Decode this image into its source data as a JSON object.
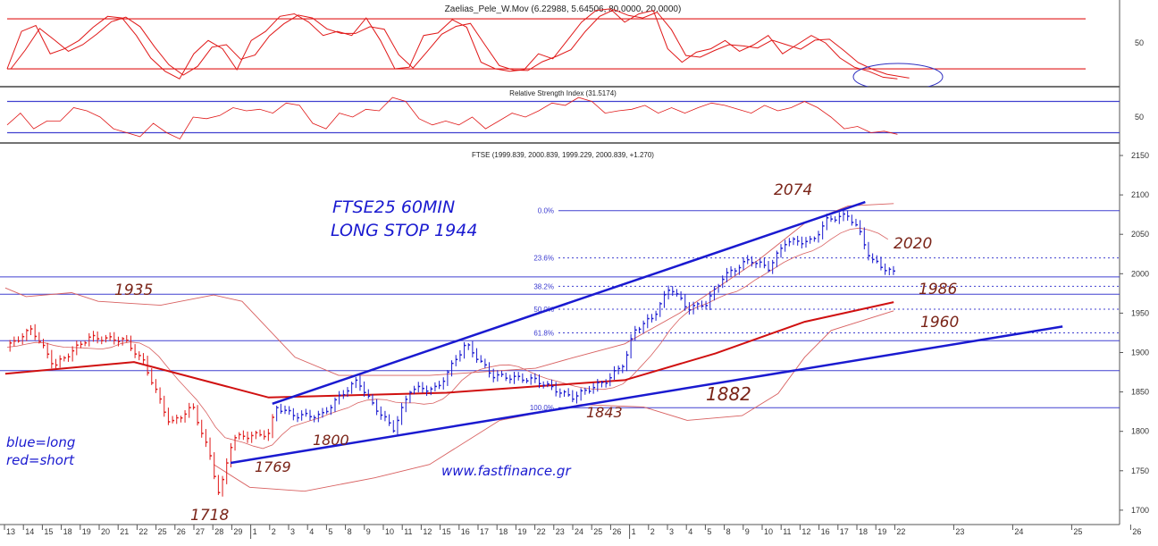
{
  "chart_data": {
    "type": "line",
    "panels": [
      {
        "name": "oscillator",
        "title": "Zaelias_Pele_W.Mov (6.22988, 5.64506, 80.0000, 20.0000)",
        "ylim": [
          0,
          100
        ],
        "ytick_labels": [
          "50"
        ],
        "levels": [
          80,
          20
        ],
        "values": [
          20,
          65,
          72,
          38,
          44,
          54,
          70,
          83,
          81,
          60,
          33,
          17,
          8,
          38,
          54,
          44,
          19,
          54,
          65,
          83,
          86,
          76,
          60,
          65,
          60,
          81,
          54,
          20,
          22,
          60,
          63,
          79,
          70,
          28,
          20,
          17,
          19,
          38,
          32,
          54,
          76,
          90,
          92,
          76,
          86,
          90,
          44,
          28,
          40,
          44,
          54,
          41,
          49,
          60,
          38,
          49,
          60,
          51,
          33,
          22,
          17,
          10,
          8
        ],
        "x_range_days": [
          0,
          47
        ]
      },
      {
        "name": "rsi",
        "title": "Relative Strength Index (31.5174)",
        "ylim": [
          10,
          90
        ],
        "ytick_labels": [
          "50"
        ],
        "levels": [
          70,
          30
        ],
        "values": [
          40,
          55,
          35,
          45,
          45,
          62,
          58,
          50,
          35,
          30,
          25,
          42,
          30,
          22,
          50,
          48,
          52,
          62,
          58,
          60,
          55,
          68,
          65,
          42,
          35,
          55,
          50,
          60,
          58,
          75,
          70,
          48,
          40,
          45,
          40,
          50,
          35,
          45,
          55,
          50,
          58,
          68,
          65,
          75,
          70,
          55,
          58,
          60,
          65,
          55,
          62,
          55,
          62,
          68,
          65,
          60,
          55,
          65,
          58,
          62,
          70,
          62,
          50,
          35,
          38,
          30,
          32,
          28
        ],
        "x_range_days": [
          0,
          47
        ]
      },
      {
        "name": "price",
        "title": "FTSE (1999.839, 2000.839, 1999.229, 2000.839, +1.270)",
        "ylim": [
          1690,
          2150
        ],
        "ytick_labels": [
          "2150",
          "2100",
          "2050",
          "2000",
          "1950",
          "1900",
          "1850",
          "1800",
          "1750",
          "1700"
        ],
        "price_path": [
          [
            -0.1,
            1905
          ],
          [
            1.3,
            1930
          ],
          [
            2.5,
            1883
          ],
          [
            4.3,
            1919
          ],
          [
            6.2,
            1916
          ],
          [
            7.2,
            1888
          ],
          [
            8.6,
            1809
          ],
          [
            9.8,
            1831
          ],
          [
            10.7,
            1769
          ],
          [
            11.2,
            1718
          ],
          [
            11.9,
            1792
          ],
          [
            13.8,
            1797
          ],
          [
            14.2,
            1831
          ],
          [
            15.2,
            1820
          ],
          [
            16.6,
            1820
          ],
          [
            17.5,
            1843
          ],
          [
            18.5,
            1865
          ],
          [
            19.2,
            1837
          ],
          [
            20.4,
            1803
          ],
          [
            21.3,
            1854
          ],
          [
            22.7,
            1854
          ],
          [
            24.2,
            1911
          ],
          [
            25.6,
            1871
          ],
          [
            27.9,
            1865
          ],
          [
            29.8,
            1843
          ],
          [
            31.7,
            1865
          ],
          [
            32.6,
            1888
          ],
          [
            33.1,
            1928
          ],
          [
            34.1,
            1945
          ],
          [
            35,
            1984
          ],
          [
            35.9,
            1956
          ],
          [
            36.9,
            1962
          ],
          [
            37.8,
            1996
          ],
          [
            39.2,
            2018
          ],
          [
            40.2,
            2007
          ],
          [
            41.1,
            2041
          ],
          [
            42.5,
            2041
          ],
          [
            43.3,
            2069
          ],
          [
            44.4,
            2074
          ],
          [
            44.9,
            2058
          ],
          [
            45.6,
            2018
          ],
          [
            46.3,
            2007
          ],
          [
            46.8,
            2001
          ]
        ],
        "signal_switch_day": 14.1,
        "ma200": [
          [
            -0.1,
            1873
          ],
          [
            6.7,
            1888
          ],
          [
            13.8,
            1843
          ],
          [
            23.2,
            1849
          ],
          [
            27.9,
            1857
          ],
          [
            32.6,
            1865
          ],
          [
            37.4,
            1899
          ],
          [
            42.1,
            1939
          ],
          [
            46.8,
            1964
          ]
        ],
        "upper_band": [
          [
            -0.1,
            1982
          ],
          [
            1.0,
            1971
          ],
          [
            3.4,
            1976
          ],
          [
            4.8,
            1965
          ],
          [
            8.1,
            1960
          ],
          [
            10.9,
            1973
          ],
          [
            12.4,
            1965
          ],
          [
            15.2,
            1894
          ],
          [
            17.5,
            1871
          ],
          [
            22.3,
            1871
          ],
          [
            27.9,
            1880
          ],
          [
            29.8,
            1893
          ],
          [
            32.6,
            1911
          ],
          [
            35.5,
            1950
          ],
          [
            39.7,
            2018
          ],
          [
            42.1,
            2064
          ],
          [
            44.4,
            2086
          ],
          [
            46.8,
            2089
          ]
        ],
        "lower_band": [
          [
            10.9,
            1758
          ],
          [
            12.8,
            1729
          ],
          [
            15.7,
            1724
          ],
          [
            19.4,
            1741
          ],
          [
            22.3,
            1758
          ],
          [
            26.0,
            1814
          ],
          [
            30.3,
            1834
          ],
          [
            33.6,
            1831
          ],
          [
            35.9,
            1814
          ],
          [
            38.8,
            1820
          ],
          [
            40.7,
            1848
          ],
          [
            42.1,
            1894
          ],
          [
            43.5,
            1928
          ],
          [
            46.8,
            1953
          ]
        ],
        "horizontal_levels": [
          1996,
          1974,
          1915,
          1877
        ],
        "fibonacci": [
          {
            "label": "0.0%",
            "price": 2080,
            "solid": true
          },
          {
            "label": "23.6%",
            "price": 2020,
            "solid": false
          },
          {
            "label": "38.2%",
            "price": 1984,
            "solid": false
          },
          {
            "label": "50.0%",
            "price": 1955,
            "solid": false
          },
          {
            "label": "61.8%",
            "price": 1925,
            "solid": false
          },
          {
            "label": "100.0%",
            "price": 1830,
            "solid": true
          }
        ],
        "trendlines": [
          {
            "name": "upper-channel",
            "from": [
              14,
              1835
            ],
            "to": [
              45.3,
              2091
            ]
          },
          {
            "name": "lower-channel",
            "from": [
              11.8,
              1760
            ],
            "to": [
              49.8,
              1933
            ]
          }
        ]
      }
    ],
    "x_tick_labels": [
      "13",
      "14",
      "15",
      "18",
      "19",
      "20",
      "21",
      "22",
      "25",
      "26",
      "27",
      "28",
      "29",
      "1",
      "2",
      "3",
      "4",
      "5",
      "8",
      "9",
      "10",
      "11",
      "12",
      "15",
      "16",
      "17",
      "18",
      "19",
      "22",
      "23",
      "24",
      "25",
      "26",
      "1",
      "2",
      "3",
      "4",
      "5",
      "8",
      "9",
      "10",
      "11",
      "12",
      "16",
      "17",
      "18",
      "19",
      "22",
      "23",
      "24",
      "25",
      "26"
    ],
    "annotations": {
      "title1": "FTSE25  60MIN",
      "title2": "LONG STOP 1944",
      "high": "2074",
      "r1": "2020",
      "s1": "1986",
      "s2": "1960",
      "l1935": "1935",
      "l1882": "1882",
      "l1843": "1843",
      "l1800": "1800",
      "l1769": "1769",
      "low": "1718",
      "legend_blue": "blue=long",
      "legend_red": "red=short",
      "website": "www.fastfinance.gr"
    },
    "colors": {
      "long": "#1a1ad0",
      "short": "#e01818",
      "band": "#d86060",
      "ma": "#d01010",
      "level": "#4040d0",
      "note": "#7a2418"
    }
  }
}
